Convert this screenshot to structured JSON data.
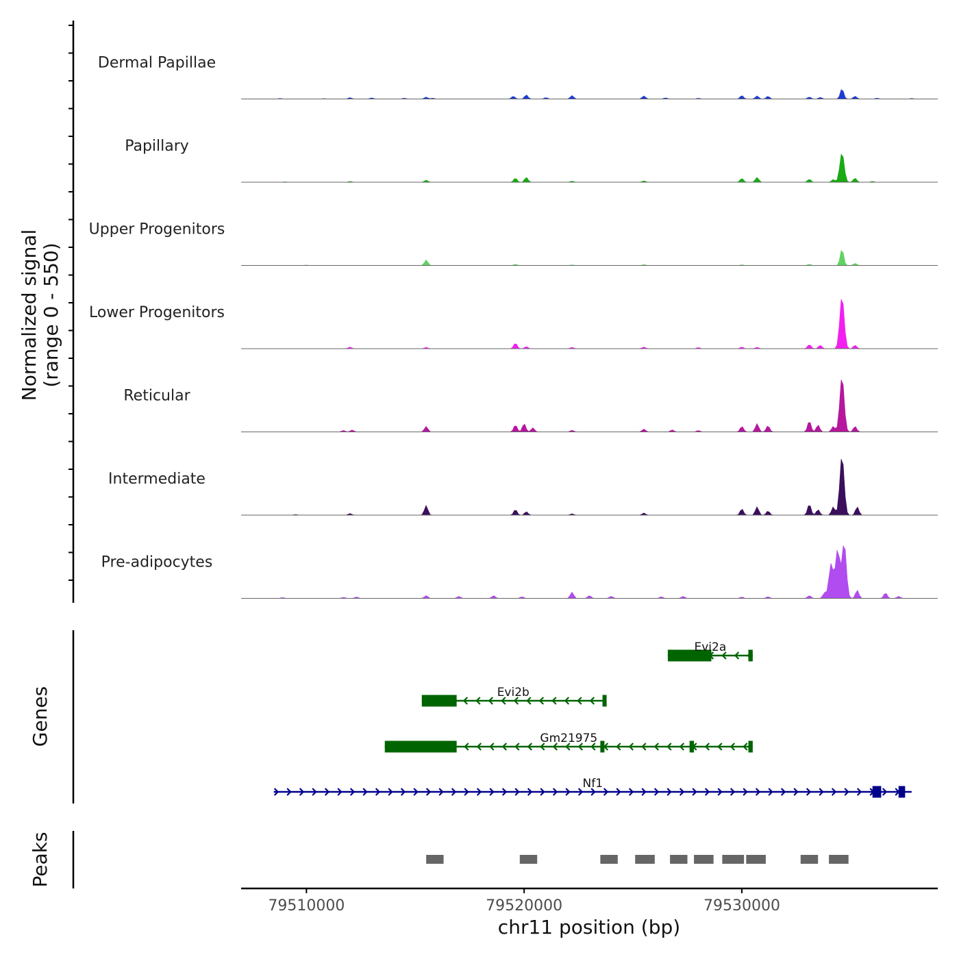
{
  "chart_data": {
    "type": "genome-browser-coverage",
    "y_axis_title": "Normalized signal",
    "y_axis_range_label": "(range 0 - 550)",
    "ylim": [
      0,
      550
    ],
    "x_axis_title": "chr11 position (bp)",
    "xlim": [
      79507000,
      79539000
    ],
    "x_ticks": [
      {
        "value": 79510000,
        "label": "79510000"
      },
      {
        "value": 79520000,
        "label": "79520000"
      },
      {
        "value": 79530000,
        "label": "79530000"
      }
    ],
    "coverage_tracks": [
      {
        "name": "Dermal Papillae",
        "color": "#1f3bd1",
        "peaks": [
          [
            79508800,
            4
          ],
          [
            79510800,
            3
          ],
          [
            79512000,
            10
          ],
          [
            79513000,
            8
          ],
          [
            79514500,
            6
          ],
          [
            79515500,
            14
          ],
          [
            79515800,
            6
          ],
          [
            79519500,
            20
          ],
          [
            79520100,
            30
          ],
          [
            79521000,
            10
          ],
          [
            79522200,
            25
          ],
          [
            79525500,
            22
          ],
          [
            79526500,
            8
          ],
          [
            79528000,
            6
          ],
          [
            79530000,
            25
          ],
          [
            79530700,
            22
          ],
          [
            79531200,
            20
          ],
          [
            79533100,
            15
          ],
          [
            79533600,
            12
          ],
          [
            79534600,
            75
          ],
          [
            79535200,
            20
          ],
          [
            79536200,
            6
          ],
          [
            79537800,
            4
          ]
        ]
      },
      {
        "name": "Papillary",
        "color": "#1aaa14",
        "peaks": [
          [
            79509000,
            3
          ],
          [
            79512000,
            6
          ],
          [
            79515500,
            15
          ],
          [
            79519600,
            30
          ],
          [
            79520100,
            35
          ],
          [
            79522200,
            8
          ],
          [
            79525500,
            10
          ],
          [
            79530000,
            28
          ],
          [
            79530700,
            35
          ],
          [
            79533100,
            22
          ],
          [
            79534200,
            20
          ],
          [
            79534600,
            215
          ],
          [
            79535200,
            30
          ],
          [
            79536000,
            6
          ]
        ]
      },
      {
        "name": "Upper Progenitors",
        "color": "#5fd35f",
        "peaks": [
          [
            79510000,
            3
          ],
          [
            79515500,
            40
          ],
          [
            79519600,
            8
          ],
          [
            79522200,
            4
          ],
          [
            79525500,
            6
          ],
          [
            79530000,
            5
          ],
          [
            79533100,
            8
          ],
          [
            79534600,
            120
          ],
          [
            79535200,
            15
          ]
        ]
      },
      {
        "name": "Lower Progenitors",
        "color": "#f21ff0",
        "peaks": [
          [
            79512000,
            12
          ],
          [
            79515500,
            10
          ],
          [
            79519600,
            40
          ],
          [
            79520100,
            15
          ],
          [
            79522200,
            10
          ],
          [
            79525500,
            12
          ],
          [
            79528000,
            8
          ],
          [
            79530000,
            12
          ],
          [
            79530700,
            10
          ],
          [
            79533100,
            30
          ],
          [
            79533600,
            25
          ],
          [
            79534600,
            380
          ],
          [
            79535200,
            25
          ]
        ]
      },
      {
        "name": "Reticular",
        "color": "#b5179e",
        "peaks": [
          [
            79511700,
            10
          ],
          [
            79512100,
            14
          ],
          [
            79515500,
            40
          ],
          [
            79519600,
            50
          ],
          [
            79520000,
            60
          ],
          [
            79520400,
            30
          ],
          [
            79522200,
            12
          ],
          [
            79525500,
            20
          ],
          [
            79526800,
            15
          ],
          [
            79528000,
            10
          ],
          [
            79530000,
            40
          ],
          [
            79530700,
            60
          ],
          [
            79531200,
            45
          ],
          [
            79533100,
            80
          ],
          [
            79533500,
            50
          ],
          [
            79534200,
            40
          ],
          [
            79534600,
            400
          ],
          [
            79535200,
            40
          ]
        ]
      },
      {
        "name": "Intermediate",
        "color": "#3b0f5c",
        "peaks": [
          [
            79509500,
            4
          ],
          [
            79512000,
            12
          ],
          [
            79515500,
            70
          ],
          [
            79519600,
            40
          ],
          [
            79520100,
            25
          ],
          [
            79522200,
            10
          ],
          [
            79525500,
            15
          ],
          [
            79530000,
            45
          ],
          [
            79530700,
            60
          ],
          [
            79531200,
            30
          ],
          [
            79533100,
            80
          ],
          [
            79533500,
            40
          ],
          [
            79534200,
            60
          ],
          [
            79534600,
            430
          ],
          [
            79535300,
            60
          ]
        ]
      },
      {
        "name": "Pre-adipocytes",
        "color": "#b04cf0",
        "peaks": [
          [
            79508900,
            6
          ],
          [
            79511700,
            8
          ],
          [
            79512300,
            10
          ],
          [
            79515500,
            20
          ],
          [
            79517000,
            15
          ],
          [
            79518600,
            20
          ],
          [
            79519900,
            12
          ],
          [
            79522200,
            45
          ],
          [
            79523000,
            20
          ],
          [
            79524000,
            15
          ],
          [
            79526300,
            12
          ],
          [
            79527300,
            15
          ],
          [
            79530000,
            10
          ],
          [
            79531200,
            12
          ],
          [
            79533100,
            20
          ],
          [
            79533800,
            40
          ],
          [
            79534100,
            250
          ],
          [
            79534400,
            350
          ],
          [
            79534700,
            400
          ],
          [
            79535300,
            60
          ],
          [
            79536600,
            40
          ],
          [
            79537200,
            15
          ]
        ]
      }
    ],
    "genes": [
      {
        "name": "Evi2a",
        "strand": "-",
        "color": "#006400",
        "start": 79526600,
        "end": 79530500,
        "exons": [
          [
            79526600,
            79528600
          ],
          [
            79530300,
            79530500
          ]
        ]
      },
      {
        "name": "Evi2b",
        "strand": "-",
        "color": "#006400",
        "start": 79515300,
        "end": 79523700,
        "exons": [
          [
            79515300,
            79516900
          ],
          [
            79523600,
            79523700
          ]
        ]
      },
      {
        "name": "Gm21975",
        "strand": "-",
        "color": "#006400",
        "start": 79513600,
        "end": 79530500,
        "exons": [
          [
            79513600,
            79516900
          ],
          [
            79523500,
            79523600
          ],
          [
            79527600,
            79527800
          ],
          [
            79530300,
            79530500
          ]
        ]
      },
      {
        "name": "Nf1",
        "strand": "+",
        "color": "#00008b",
        "start": 79508500,
        "end": 79537800,
        "exons": [
          [
            79536000,
            79536400
          ],
          [
            79537200,
            79537500
          ]
        ]
      }
    ],
    "peaks_track_label": "Peaks",
    "genes_track_label": "Genes",
    "peak_regions": [
      [
        79515500,
        79516300
      ],
      [
        79519800,
        79520600
      ],
      [
        79523500,
        79524300
      ],
      [
        79525100,
        79526000
      ],
      [
        79526700,
        79527500
      ],
      [
        79527800,
        79528700
      ],
      [
        79529100,
        79530100
      ],
      [
        79530200,
        79531100
      ],
      [
        79532700,
        79533500
      ],
      [
        79534000,
        79534900
      ]
    ],
    "peak_color": "#666666"
  }
}
